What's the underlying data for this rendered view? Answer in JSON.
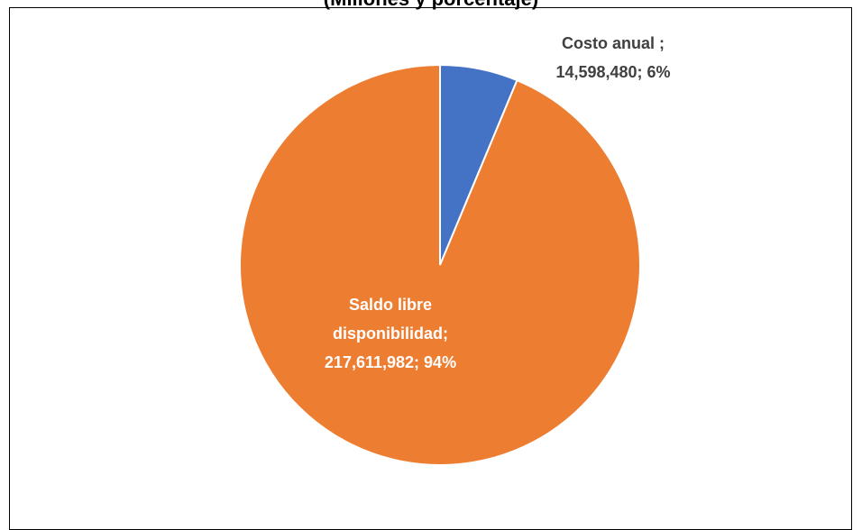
{
  "chart_data": {
    "type": "pie",
    "title": "(Millones y porcentaje)",
    "categories": [
      "Costo anual ;",
      "Saldo libre disponibilidad;"
    ],
    "values": [
      14598480,
      217611982
    ],
    "value_labels": [
      "14,598,480;",
      "217,611,982;"
    ],
    "percentages": [
      6,
      94
    ],
    "percent_labels": [
      "6%",
      "94%"
    ],
    "colors": [
      "#4472c4",
      "#ed7d31"
    ],
    "label_colors": [
      "#404040",
      "#ffffff"
    ]
  }
}
